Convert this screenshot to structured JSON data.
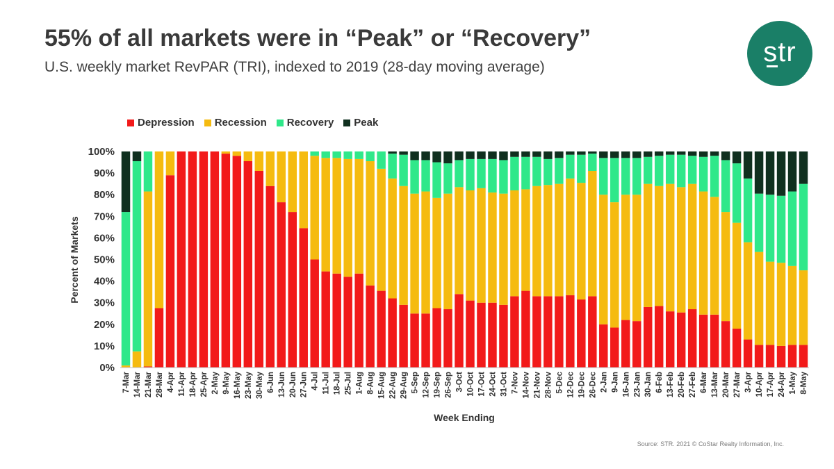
{
  "header": {
    "title": "55% of all markets were in “Peak” or “Recovery”",
    "subtitle": "U.S. weekly market RevPAR (TRI), indexed to 2019 (28-day moving average)"
  },
  "logo": {
    "text": "str",
    "color": "#1a7f67"
  },
  "source": "Source: STR. 2021 © CoStar Realty Information, Inc.",
  "colors": {
    "depression": "#f21a1a",
    "recession": "#f5bb10",
    "recovery": "#2fe88a",
    "peak": "#10301f"
  },
  "chart_data": {
    "type": "bar",
    "stacked": true,
    "title": "55% of all markets were in “Peak” or “Recovery”",
    "subtitle": "U.S. weekly market RevPAR (TRI), indexed to 2019 (28-day moving average)",
    "xlabel": "Week Ending",
    "ylabel": "Percent of Markets",
    "ylim": [
      0,
      100
    ],
    "yticks": [
      "0%",
      "10%",
      "20%",
      "30%",
      "40%",
      "50%",
      "60%",
      "70%",
      "80%",
      "90%",
      "100%"
    ],
    "legend_position": "top-left",
    "categories": [
      "7-Mar",
      "14-Mar",
      "21-Mar",
      "28-Mar",
      "4-Apr",
      "11-Apr",
      "18-Apr",
      "25-Apr",
      "2-May",
      "9-May",
      "16-May",
      "23-May",
      "30-May",
      "6-Jun",
      "13-Jun",
      "20-Jun",
      "27-Jun",
      "4-Jul",
      "11-Jul",
      "18-Jul",
      "25-Jul",
      "1-Aug",
      "8-Aug",
      "15-Aug",
      "22-Aug",
      "29-Aug",
      "5-Sep",
      "12-Sep",
      "19-Sep",
      "26-Sep",
      "3-Oct",
      "10-Oct",
      "17-Oct",
      "24-Oct",
      "31-Oct",
      "7-Nov",
      "14-Nov",
      "21-Nov",
      "28-Nov",
      "5-Dec",
      "12-Dec",
      "19-Dec",
      "26-Dec",
      "2-Jan",
      "9-Jan",
      "16-Jan",
      "23-Jan",
      "30-Jan",
      "6-Feb",
      "13-Feb",
      "20-Feb",
      "27-Feb",
      "6-Mar",
      "13-Mar",
      "20-Mar",
      "27-Mar",
      "3-Apr",
      "10-Apr",
      "17-Apr",
      "24-Apr",
      "1-May",
      "8-May"
    ],
    "series": [
      {
        "name": "Depression",
        "key": "depression",
        "values": [
          0,
          0,
          0.5,
          27.5,
          89,
          100,
          100,
          100,
          100,
          99,
          98,
          95.5,
          91,
          84,
          76.5,
          72,
          64.5,
          50,
          44.5,
          43.5,
          42,
          43.5,
          38,
          35.5,
          32,
          29,
          25,
          25,
          27.5,
          27,
          34,
          31,
          30,
          30,
          29,
          33,
          35.5,
          33,
          33,
          33,
          33.5,
          31.5,
          33,
          20,
          18.5,
          22,
          21.5,
          28,
          28.5,
          26,
          25.5,
          27,
          24.5,
          24.5,
          21.5,
          18,
          13,
          10.5,
          10.5,
          10,
          10.5,
          10.5
        ]
      },
      {
        "name": "Recession",
        "key": "recession",
        "values": [
          1,
          7.5,
          81,
          72.5,
          11,
          0,
          0,
          0,
          0,
          1,
          2,
          4.5,
          9,
          16,
          23.5,
          28,
          35.5,
          48,
          52.5,
          53.5,
          54.5,
          53,
          57.5,
          56.5,
          55.5,
          55,
          55.5,
          56.5,
          51,
          53.5,
          49.5,
          51,
          53,
          51,
          51.5,
          49,
          47,
          51,
          51.5,
          52,
          54,
          54,
          58,
          60,
          58,
          58,
          58.5,
          57,
          55.5,
          59,
          58,
          58,
          57,
          54.5,
          50.5,
          49,
          45,
          43,
          38.5,
          38.5,
          36.5,
          34.5
        ]
      },
      {
        "name": "Recovery",
        "key": "recovery",
        "values": [
          71,
          88,
          18.5,
          0,
          0,
          0,
          0,
          0,
          0,
          0,
          0,
          0,
          0,
          0,
          0,
          0,
          0,
          2,
          3,
          3,
          3.5,
          3.5,
          4.5,
          8,
          11.5,
          14.5,
          15.5,
          14.5,
          16.5,
          14,
          12.5,
          14.5,
          13.5,
          15.5,
          15.5,
          15.5,
          15,
          13.5,
          12,
          12,
          11,
          13,
          8,
          17,
          20.5,
          17,
          17,
          12.5,
          14,
          13.5,
          15,
          13,
          16,
          19,
          24,
          27.5,
          29.5,
          27,
          31,
          31,
          34.5,
          40
        ]
      },
      {
        "name": "Peak",
        "key": "peak",
        "values": [
          28,
          4.5,
          0,
          0,
          0,
          0,
          0,
          0,
          0,
          0,
          0,
          0,
          0,
          0,
          0,
          0,
          0,
          0,
          0,
          0,
          0,
          0,
          0,
          0,
          1,
          1.5,
          4,
          4,
          5,
          5.5,
          4,
          3.5,
          3.5,
          3.5,
          4,
          2.5,
          2.5,
          2.5,
          3.5,
          3,
          1.5,
          1.5,
          1,
          3,
          3,
          3,
          3,
          2.5,
          2,
          1.5,
          1.5,
          2,
          2.5,
          2,
          4,
          5.5,
          12.5,
          19.5,
          20,
          20.5,
          18.5,
          15
        ]
      }
    ]
  }
}
